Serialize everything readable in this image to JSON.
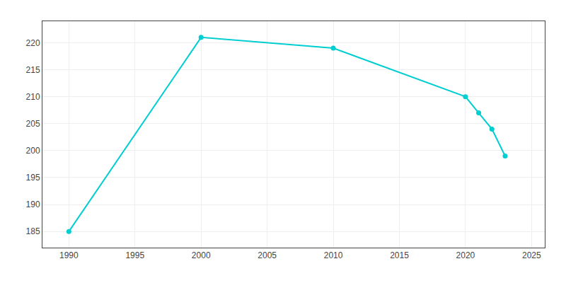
{
  "chart_data": {
    "type": "line",
    "x": [
      1990,
      2000,
      2010,
      2020,
      2021,
      2022,
      2023
    ],
    "values": [
      185,
      221,
      219,
      210,
      207,
      204,
      199
    ],
    "color": "#00CED1",
    "marker": "circle",
    "xlim": [
      1988,
      2026
    ],
    "ylim": [
      182,
      224
    ],
    "xticks": [
      1990,
      1995,
      2000,
      2005,
      2010,
      2015,
      2020,
      2025
    ],
    "yticks": [
      185,
      190,
      195,
      200,
      205,
      210,
      215,
      220
    ],
    "grid": true
  }
}
